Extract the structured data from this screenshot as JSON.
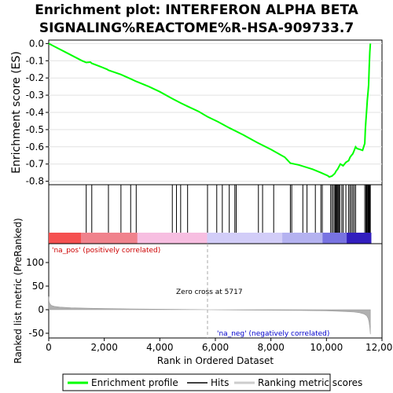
{
  "chart_data": [
    {
      "type": "line",
      "title_lines": [
        "Enrichment plot: INTERFERON ALPHA BETA",
        "SIGNALING%REACTOME%R-HSA-909733.7"
      ],
      "ylabel": "Enrichment score (ES)",
      "xlim": [
        0,
        12000
      ],
      "ylim": [
        -0.82,
        0.02
      ],
      "yticks": [
        0.0,
        -0.1,
        -0.2,
        -0.3,
        -0.4,
        -0.5,
        -0.6,
        -0.7,
        -0.8
      ],
      "ytick_labels": [
        "0.0",
        "-0.1",
        "-0.2",
        "-0.3",
        "-0.4",
        "-0.5",
        "-0.6",
        "-0.7",
        "-0.8"
      ],
      "grid": true,
      "series": [
        {
          "name": "Enrichment profile",
          "color": "#00ff00",
          "x": [
            0,
            300,
            600,
            900,
            1200,
            1350,
            1500,
            1550,
            1800,
            2100,
            2150,
            2600,
            2950,
            3150,
            3600,
            4000,
            4450,
            4750,
            5000,
            5400,
            5717,
            6100,
            6500,
            7000,
            7500,
            8000,
            8500,
            8700,
            9000,
            9500,
            9800,
            10050,
            10100,
            10200,
            10300,
            10350,
            10400,
            10500,
            10600,
            10700,
            10800,
            10850,
            10900,
            10950,
            11000,
            11050,
            11100,
            11200,
            11300,
            11380,
            11400,
            11420,
            11450,
            11470,
            11500,
            11520,
            11540,
            11560,
            11580
          ],
          "y": [
            0.0,
            -0.025,
            -0.05,
            -0.075,
            -0.1,
            -0.11,
            -0.108,
            -0.115,
            -0.13,
            -0.15,
            -0.155,
            -0.18,
            -0.205,
            -0.22,
            -0.25,
            -0.28,
            -0.32,
            -0.345,
            -0.365,
            -0.395,
            -0.425,
            -0.455,
            -0.49,
            -0.53,
            -0.575,
            -0.615,
            -0.66,
            -0.695,
            -0.705,
            -0.73,
            -0.75,
            -0.768,
            -0.775,
            -0.77,
            -0.755,
            -0.74,
            -0.73,
            -0.7,
            -0.71,
            -0.69,
            -0.68,
            -0.66,
            -0.65,
            -0.64,
            -0.62,
            -0.6,
            -0.61,
            -0.615,
            -0.62,
            -0.58,
            -0.5,
            -0.45,
            -0.38,
            -0.33,
            -0.28,
            -0.24,
            -0.14,
            -0.05,
            0.0
          ]
        }
      ]
    },
    {
      "type": "rug",
      "series": [
        {
          "name": "Hits",
          "color": "#000000",
          "x": [
            1350,
            1550,
            2150,
            2600,
            2950,
            3150,
            4450,
            4600,
            4750,
            5000,
            5717,
            6050,
            6250,
            6500,
            6700,
            6750,
            7550,
            7700,
            8100,
            8700,
            8750,
            9150,
            9300,
            9600,
            9800,
            9850,
            10150,
            10200,
            10250,
            10300,
            10330,
            10360,
            10390,
            10420,
            10450,
            10480,
            10550,
            10600,
            10700,
            10800,
            10850,
            10900,
            10950,
            11000,
            11050,
            11380,
            11420,
            11450,
            11480,
            11500,
            11520,
            11540,
            11560,
            11580
          ]
        }
      ],
      "gradient": {
        "positive_color": "#ff0000",
        "negative_color": "#0000ff",
        "zero_cross": 5717
      }
    },
    {
      "type": "area",
      "ylabel": "Ranked list metric (PreRanked)",
      "xlabel": "Rank in Ordered Dataset",
      "xlim": [
        0,
        12000
      ],
      "ylim": [
        -60,
        140
      ],
      "yticks": [
        100,
        50,
        0,
        -50
      ],
      "xticks": [
        0,
        2000,
        4000,
        6000,
        8000,
        10000,
        12000
      ],
      "xtick_labels": [
        "0",
        "2,000",
        "4,000",
        "6,000",
        "8,000",
        "10,000",
        "12,000"
      ],
      "series": [
        {
          "name": "Ranking metric scores",
          "color": "#b0b0b0",
          "x": [
            0,
            10,
            30,
            60,
            100,
            200,
            400,
            800,
            1500,
            3000,
            4500,
            5717,
            7000,
            9000,
            10000,
            10500,
            11000,
            11200,
            11350,
            11450,
            11500,
            11530,
            11560,
            11580
          ],
          "y": [
            28,
            18,
            14,
            11,
            9,
            7,
            5.5,
            4,
            3,
            1.5,
            0.6,
            0,
            -0.6,
            -1.5,
            -2.5,
            -3.5,
            -5,
            -6.5,
            -9,
            -13,
            -18,
            -25,
            -38,
            -52
          ]
        }
      ],
      "annotations": {
        "zero_cross": "Zero cross at 5717",
        "na_pos": "'na_pos' (positively correlated)",
        "na_neg": "'na_neg' (negatively correlated)",
        "na_pos_color": "#cc0000",
        "na_neg_color": "#0000cc"
      }
    }
  ],
  "legend": {
    "items": [
      {
        "label": "Enrichment profile",
        "color": "#00ff00"
      },
      {
        "label": "Hits",
        "color": "#000000"
      },
      {
        "label": "Ranking metric scores",
        "color": "#cccccc"
      }
    ]
  }
}
